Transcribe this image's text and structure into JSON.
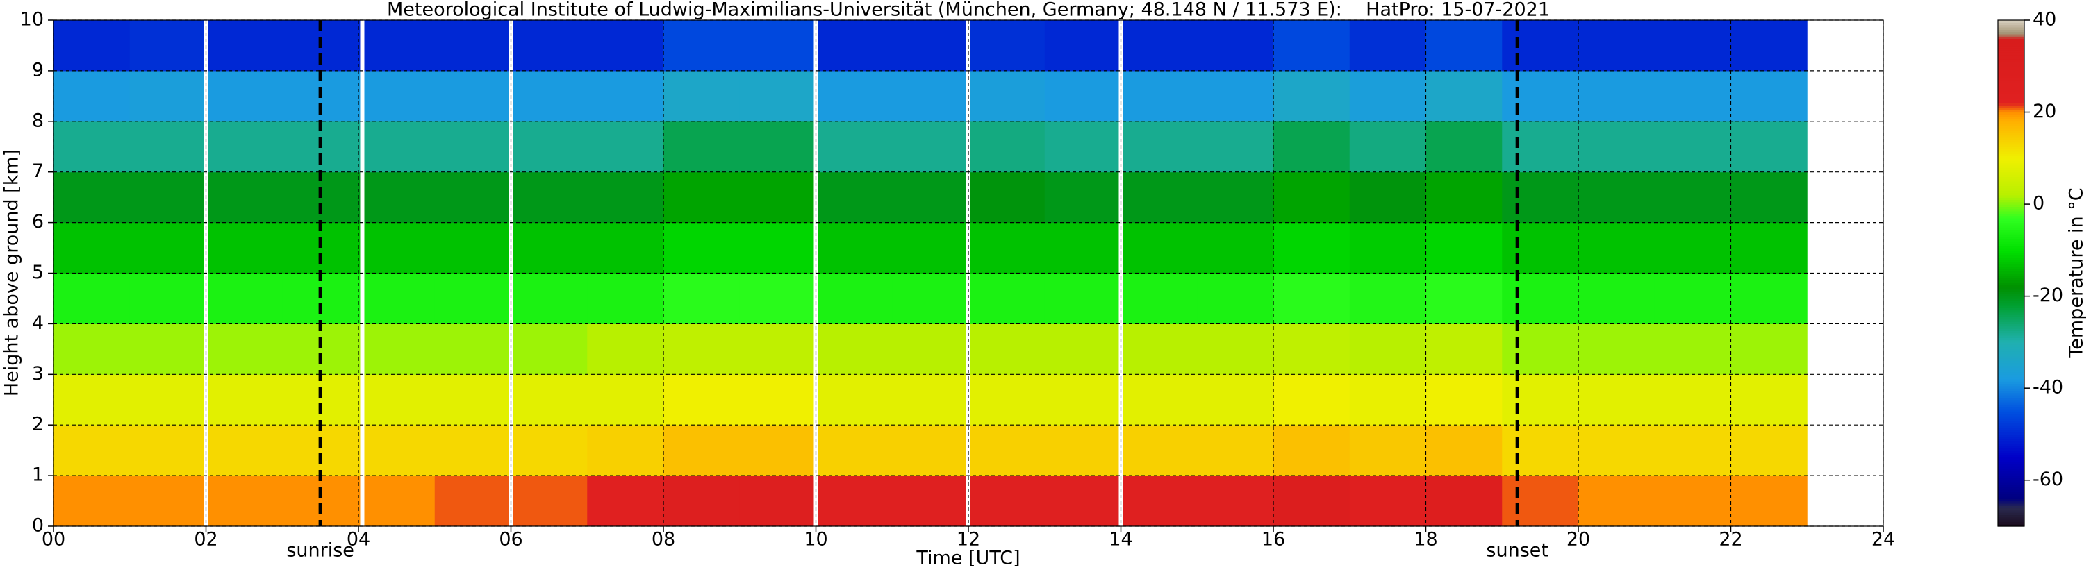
{
  "chart_data": {
    "type": "heatmap",
    "title": "Meteorological Institute of Ludwig-Maximilians-Universität (München, Germany; 48.148 N / 11.573 E):    HatPro: 15-07-2021",
    "xlabel": "Time [UTC]",
    "ylabel": "Height above ground [km]",
    "colorbar_label": "Temperature in °C",
    "xlim": [
      0,
      24
    ],
    "ylim": [
      0,
      10
    ],
    "xticks": [
      {
        "value": 0,
        "label": "00"
      },
      {
        "value": 2,
        "label": "02"
      },
      {
        "value": 4,
        "label": "04"
      },
      {
        "value": 6,
        "label": "06"
      },
      {
        "value": 8,
        "label": "08"
      },
      10,
      12,
      14,
      16,
      18,
      20,
      22,
      24
    ],
    "yticks": [
      0,
      1,
      2,
      3,
      4,
      5,
      6,
      7,
      8,
      9,
      10
    ],
    "grid": true,
    "x_bins": [
      0,
      1,
      2,
      3,
      4,
      5,
      6,
      7,
      8,
      9,
      10,
      11,
      12,
      13,
      14,
      15,
      16,
      17,
      18,
      19,
      20,
      21,
      22,
      23
    ],
    "y_bins": [
      0,
      1,
      2,
      3,
      4,
      5,
      6,
      7,
      8,
      9,
      10
    ],
    "values": [
      [
        20,
        13,
        8,
        1,
        -6,
        -13,
        -20,
        -28,
        -38,
        -50
      ],
      [
        20,
        13,
        8,
        1,
        -6,
        -13,
        -20,
        -28,
        -37,
        -49
      ],
      [
        20,
        13,
        8,
        1,
        -6,
        -13,
        -20,
        -28,
        -38,
        -50
      ],
      [
        20,
        13,
        8,
        1,
        -6,
        -13,
        -20,
        -28,
        -38,
        -50
      ],
      [
        20,
        13,
        8,
        1,
        -6,
        -13,
        -20,
        -28,
        -38,
        -50
      ],
      [
        21,
        13,
        8,
        1,
        -6,
        -13,
        -20,
        -28,
        -38,
        -50
      ],
      [
        21,
        13,
        8,
        1,
        -6,
        -13,
        -20,
        -28,
        -38,
        -50
      ],
      [
        22,
        14,
        8,
        2,
        -6,
        -13,
        -20,
        -28,
        -38,
        -50
      ],
      [
        27,
        16,
        10,
        3,
        -4,
        -11,
        -16,
        -24,
        -34,
        -46
      ],
      [
        27,
        16,
        10,
        3,
        -4,
        -11,
        -16,
        -24,
        -34,
        -46
      ],
      [
        23,
        14,
        8,
        2,
        -6,
        -13,
        -20,
        -28,
        -38,
        -50
      ],
      [
        23,
        14,
        8,
        2,
        -6,
        -13,
        -20,
        -28,
        -38,
        -50
      ],
      [
        23,
        14,
        8,
        2,
        -6,
        -13,
        -19,
        -27,
        -37,
        -49
      ],
      [
        23,
        14,
        8,
        2,
        -6,
        -13,
        -20,
        -28,
        -38,
        -50
      ],
      [
        23,
        14,
        8,
        2,
        -6,
        -13,
        -20,
        -28,
        -38,
        -50
      ],
      [
        23,
        14,
        8,
        2,
        -6,
        -13,
        -20,
        -28,
        -38,
        -50
      ],
      [
        29,
        16,
        10,
        3,
        -4,
        -11,
        -16,
        -24,
        -34,
        -46
      ],
      [
        24,
        15,
        9,
        2,
        -5,
        -12,
        -19,
        -27,
        -37,
        -49
      ],
      [
        28,
        16,
        10,
        3,
        -4,
        -11,
        -16,
        -24,
        -34,
        -46
      ],
      [
        21,
        13,
        8,
        1,
        -6,
        -13,
        -20,
        -28,
        -38,
        -50
      ],
      [
        20,
        13,
        8,
        1,
        -6,
        -13,
        -20,
        -28,
        -38,
        -50
      ],
      [
        20,
        13,
        8,
        1,
        -6,
        -13,
        -20,
        -28,
        -38,
        -50
      ],
      [
        20,
        13,
        8,
        1,
        -6,
        -13,
        -20,
        -28,
        -38,
        -50
      ]
    ],
    "gaps": [
      2.0,
      4.05,
      6.0,
      10.0,
      12.0,
      14.0
    ],
    "annotations": [
      {
        "text": "sunrise",
        "x": 3.5
      },
      {
        "text": "sunset",
        "x": 19.2
      }
    ],
    "clim": [
      -70,
      40
    ],
    "cticks": [
      -60,
      -40,
      -20,
      0,
      20,
      40
    ],
    "colorscale": [
      [
        -70,
        "#1a0a1a"
      ],
      [
        -66,
        "#2a2a50"
      ],
      [
        -64,
        "#000080"
      ],
      [
        -55,
        "#0000c8"
      ],
      [
        -45,
        "#0050e0"
      ],
      [
        -38,
        "#1a9be0"
      ],
      [
        -30,
        "#20b0b0"
      ],
      [
        -22,
        "#00a030"
      ],
      [
        -18,
        "#009000"
      ],
      [
        -10,
        "#00e000"
      ],
      [
        -3,
        "#30ff20"
      ],
      [
        2,
        "#b8f000"
      ],
      [
        10,
        "#f0f000"
      ],
      [
        18,
        "#ffb000"
      ],
      [
        20,
        "#ff9000"
      ],
      [
        22,
        "#e02020"
      ],
      [
        36,
        "#d81c1c"
      ],
      [
        37,
        "#a09070"
      ],
      [
        40,
        "#d8d0c0"
      ]
    ]
  }
}
